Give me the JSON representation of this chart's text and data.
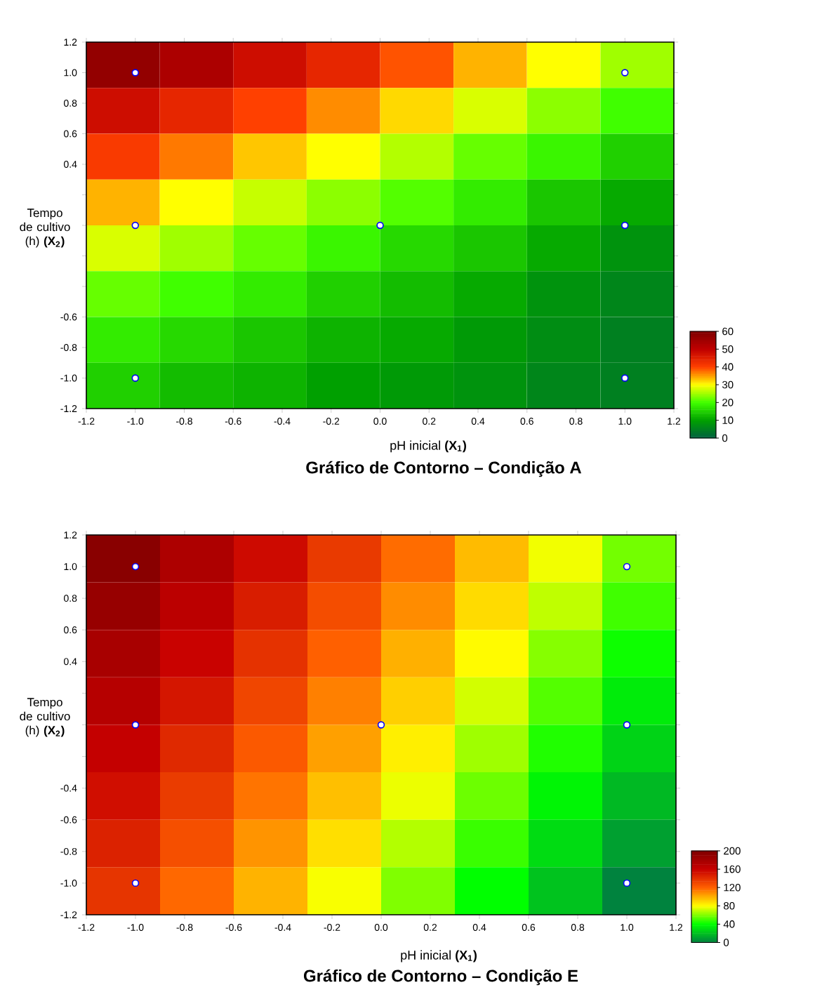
{
  "chart_data": [
    {
      "type": "heatmap",
      "title": "Gráfico de Contorno – Condição A",
      "xlabel": "pH inicial **(X$_{1}$)**",
      "ylabel": "Tempo de cultivo (h) **(X$_{2}$)**",
      "xlim": [
        -1.2,
        1.2
      ],
      "ylim": [
        -1.2,
        1.2
      ],
      "xticks": [
        -1.2,
        {
          "value": -1.0,
          "label": "-1.0"
        },
        -0.8,
        -0.6,
        -0.4,
        -0.2,
        {
          "value": 0.0,
          "label": "0.0"
        },
        0.2,
        0.4,
        0.6,
        0.8,
        {
          "value": 1.0,
          "label": "1.0"
        },
        1.2
      ],
      "yticks": [
        -1.2,
        {
          "value": -1.0,
          "label": "-1.0"
        },
        -0.8,
        -0.6,
        {
          "value": -0.4,
          "label": null
        },
        {
          "value": -0.2,
          "label": null
        },
        {
          "value": 0.0,
          "label": null
        },
        {
          "value": 0.2,
          "label": null
        },
        0.4,
        0.6,
        0.8,
        {
          "value": 1.0,
          "label": "1.0"
        },
        1.2
      ],
      "clim": [
        0,
        60
      ],
      "cticks": [
        0,
        10,
        20,
        30,
        40,
        50,
        60
      ],
      "cells": [
        [
          57,
          53,
          48,
          44,
          39,
          34,
          30,
          25
        ],
        [
          48,
          44,
          40,
          36,
          32,
          28,
          24,
          20
        ],
        [
          41,
          37,
          33,
          30,
          26,
          22,
          19,
          15
        ],
        [
          34,
          30,
          27,
          24,
          21,
          18,
          14,
          11
        ],
        [
          28,
          25,
          22,
          19,
          16,
          14,
          11,
          8
        ],
        [
          22,
          20,
          18,
          15,
          13,
          11,
          8,
          6
        ],
        [
          18,
          16,
          14,
          12,
          11,
          9,
          7,
          5
        ],
        [
          15,
          13,
          12,
          10,
          9,
          8,
          6,
          5
        ]
      ],
      "marker": "circle",
      "series": [
        {
          "type": "scatter",
          "color": "#0000ff",
          "x": [
            -1,
            1,
            -1,
            0,
            1,
            -1,
            1
          ],
          "values": [
            1,
            1,
            0,
            0,
            0,
            -1,
            -1
          ]
        }
      ]
    },
    {
      "type": "heatmap",
      "title": "Gráfico de Contorno – Condição E",
      "xlabel": "pH inicial **(X$_{1}$)**",
      "ylabel": "Tempo de cultivo (h) **(X$_{2}$)**",
      "xlim": [
        -1.2,
        1.2
      ],
      "ylim": [
        -1.2,
        1.2
      ],
      "xticks": [
        -1.2,
        {
          "value": -1.0,
          "label": "-1.0"
        },
        -0.8,
        -0.6,
        -0.4,
        -0.2,
        {
          "value": 0.0,
          "label": "0.0"
        },
        0.2,
        0.4,
        0.6,
        0.8,
        {
          "value": 1.0,
          "label": "1.0"
        },
        1.2
      ],
      "yticks": [
        -1.2,
        {
          "value": -1.0,
          "label": "-1.0"
        },
        -0.8,
        -0.6,
        -0.4,
        {
          "value": -0.2,
          "label": null
        },
        {
          "value": 0.0,
          "label": null
        },
        {
          "value": 0.2,
          "label": null
        },
        0.4,
        0.6,
        0.8,
        {
          "value": 1.0,
          "label": "1.0"
        },
        1.2
      ],
      "clim": [
        0,
        200
      ],
      "cticks": [
        0,
        40,
        80,
        120,
        160,
        200
      ],
      "cells": [
        [
          195,
          175,
          156,
          136,
          117,
          97,
          78,
          58
        ],
        [
          187,
          167,
          148,
          128,
          109,
          89,
          70,
          50
        ],
        [
          178,
          159,
          139,
          120,
          100,
          81,
          61,
          42
        ],
        [
          170,
          151,
          131,
          112,
          92,
          73,
          53,
          34
        ],
        [
          162,
          143,
          123,
          104,
          84,
          65,
          45,
          26
        ],
        [
          154,
          135,
          115,
          96,
          77,
          57,
          37,
          18
        ],
        [
          146,
          127,
          107,
          88,
          68,
          49,
          29,
          10
        ],
        [
          138,
          118,
          99,
          79,
          60,
          40,
          21,
          1
        ]
      ],
      "marker": "circle",
      "series": [
        {
          "type": "scatter",
          "color": "#0000ff",
          "x": [
            -1,
            1,
            -1,
            0,
            1,
            -1,
            1
          ],
          "values": [
            1,
            1,
            0,
            0,
            0,
            -1,
            -1
          ]
        }
      ]
    }
  ]
}
